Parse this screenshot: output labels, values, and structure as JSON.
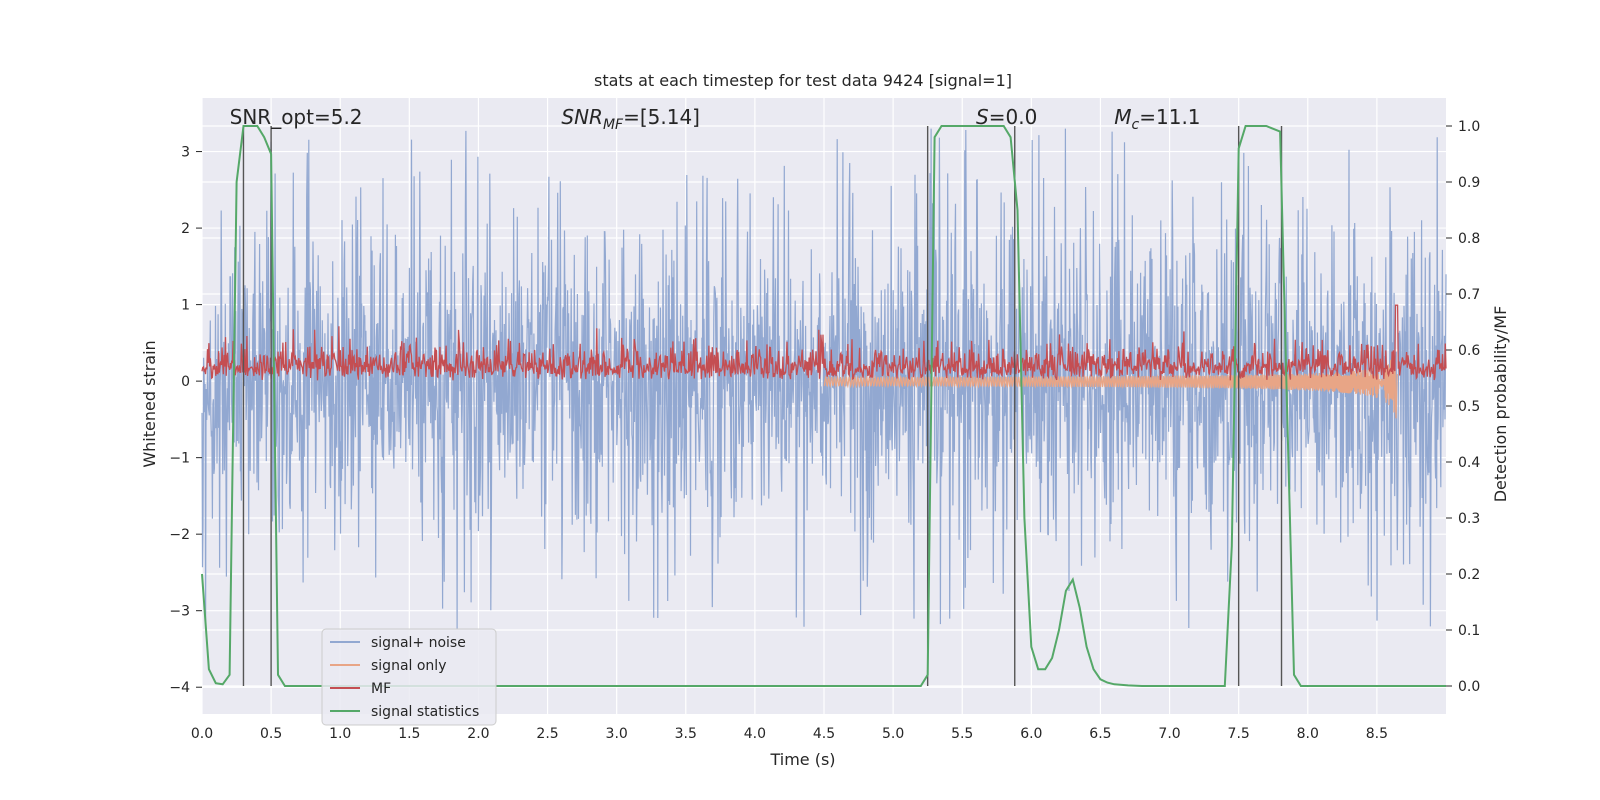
{
  "chart_data": {
    "type": "line",
    "title": "stats at each timestep for test data 9424 [signal=1]",
    "xlabel": "Time (s)",
    "ylabel_left": "Whitened strain",
    "ylabel_right": "Detection probability/MF",
    "xlim": [
      0.0,
      9.0
    ],
    "ylim_left": [
      -4.35,
      3.7
    ],
    "ylim_right": [
      -0.05,
      1.05
    ],
    "xticks": [
      "0.0",
      "0.5",
      "1.0",
      "1.5",
      "2.0",
      "2.5",
      "3.0",
      "3.5",
      "4.0",
      "4.5",
      "5.0",
      "5.5",
      "6.0",
      "6.5",
      "7.0",
      "7.5",
      "8.0",
      "8.5"
    ],
    "yticks_left": [
      "3",
      "2",
      "1",
      "0",
      "−1",
      "−2",
      "−3",
      "−4"
    ],
    "yticks_right": [
      "1.0",
      "0.9",
      "0.8",
      "0.7",
      "0.6",
      "0.5",
      "0.4",
      "0.3",
      "0.2",
      "0.1",
      "0.0"
    ],
    "grid": true,
    "legend_position": "lower-left",
    "annotations": [
      {
        "text": "SNR_opt=5.2",
        "x": 0.2
      },
      {
        "text": "SNR_MF=[5.14]",
        "x": 2.6
      },
      {
        "text": "S=0.0",
        "x": 5.6
      },
      {
        "text": "M_c=11.1",
        "x": 6.6
      }
    ],
    "series": [
      {
        "name": "signal+ noise",
        "color": "#92a8d1",
        "axis": "left",
        "envelope": {
          "typical_abs": 1.7,
          "max_abs": 3.3
        }
      },
      {
        "name": "signal only",
        "color": "#e8a586",
        "axis": "left",
        "chirp_start": 4.5,
        "chirp_end": 8.65,
        "peak_amplitude": 0.6
      },
      {
        "name": "MF",
        "color": "#c44e52",
        "axis": "right",
        "baseline": 0.56,
        "band": [
          0.545,
          0.615
        ]
      },
      {
        "name": "signal statistics",
        "color": "#55a868",
        "axis": "right",
        "x": [
          0.0,
          0.05,
          0.1,
          0.15,
          0.2,
          0.25,
          0.3,
          0.35,
          0.4,
          0.45,
          0.5,
          0.55,
          0.6,
          0.65,
          1.0,
          2.0,
          3.0,
          4.0,
          5.0,
          5.2,
          5.25,
          5.3,
          5.35,
          5.4,
          5.5,
          5.6,
          5.7,
          5.8,
          5.85,
          5.9,
          5.95,
          6.0,
          6.05,
          6.1,
          6.15,
          6.2,
          6.25,
          6.3,
          6.35,
          6.4,
          6.45,
          6.5,
          6.55,
          6.6,
          6.7,
          6.8,
          7.0,
          7.2,
          7.4,
          7.45,
          7.5,
          7.55,
          7.6,
          7.7,
          7.8,
          7.85,
          7.9,
          7.95,
          8.0,
          8.5,
          9.0
        ],
        "y": [
          0.2,
          0.03,
          0.005,
          0.003,
          0.02,
          0.9,
          1.0,
          1.0,
          1.0,
          0.98,
          0.95,
          0.02,
          0.0,
          0.0,
          0.0,
          0.0,
          0.0,
          0.0,
          0.0,
          0.0,
          0.02,
          0.98,
          1.0,
          1.0,
          1.0,
          1.0,
          1.0,
          1.0,
          0.98,
          0.85,
          0.3,
          0.07,
          0.03,
          0.03,
          0.05,
          0.1,
          0.17,
          0.19,
          0.14,
          0.07,
          0.03,
          0.012,
          0.006,
          0.003,
          0.001,
          0.0,
          0.0,
          0.0,
          0.0,
          0.25,
          0.96,
          1.0,
          1.0,
          1.0,
          0.99,
          0.5,
          0.02,
          0.0,
          0.0,
          0.0,
          0.0
        ]
      }
    ],
    "vertical_lines_x": [
      0.3,
      0.5,
      5.25,
      5.88,
      7.5,
      7.81
    ]
  }
}
